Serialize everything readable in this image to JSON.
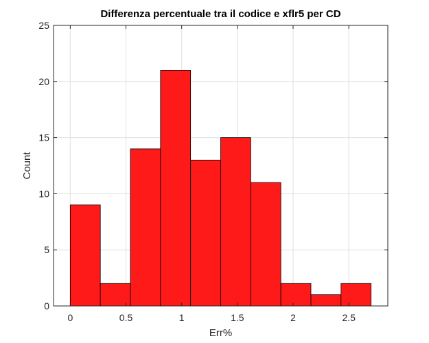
{
  "chart_data": {
    "type": "bar",
    "subtype": "histogram",
    "title": "Differenza percentuale tra il codice e xflr5 per CD",
    "xlabel": "Err%",
    "ylabel": "Count",
    "xlim": [
      -0.15,
      2.85
    ],
    "ylim": [
      0,
      25
    ],
    "xticks": [
      0,
      0.5,
      1,
      1.5,
      2,
      2.5
    ],
    "xtick_labels": [
      "0",
      "0.5",
      "1",
      "1.5",
      "2",
      "2.5"
    ],
    "yticks": [
      0,
      5,
      10,
      15,
      20,
      25
    ],
    "ytick_labels": [
      "0",
      "5",
      "10",
      "15",
      "20",
      "25"
    ],
    "grid": true,
    "bin_edges": [
      0,
      0.27,
      0.54,
      0.81,
      1.08,
      1.35,
      1.62,
      1.89,
      2.16,
      2.43,
      2.7
    ],
    "values": [
      9,
      2,
      14,
      21,
      13,
      15,
      11,
      2,
      1,
      2
    ],
    "bar_color": "#ff1a1a",
    "edge_color": "#000000"
  }
}
